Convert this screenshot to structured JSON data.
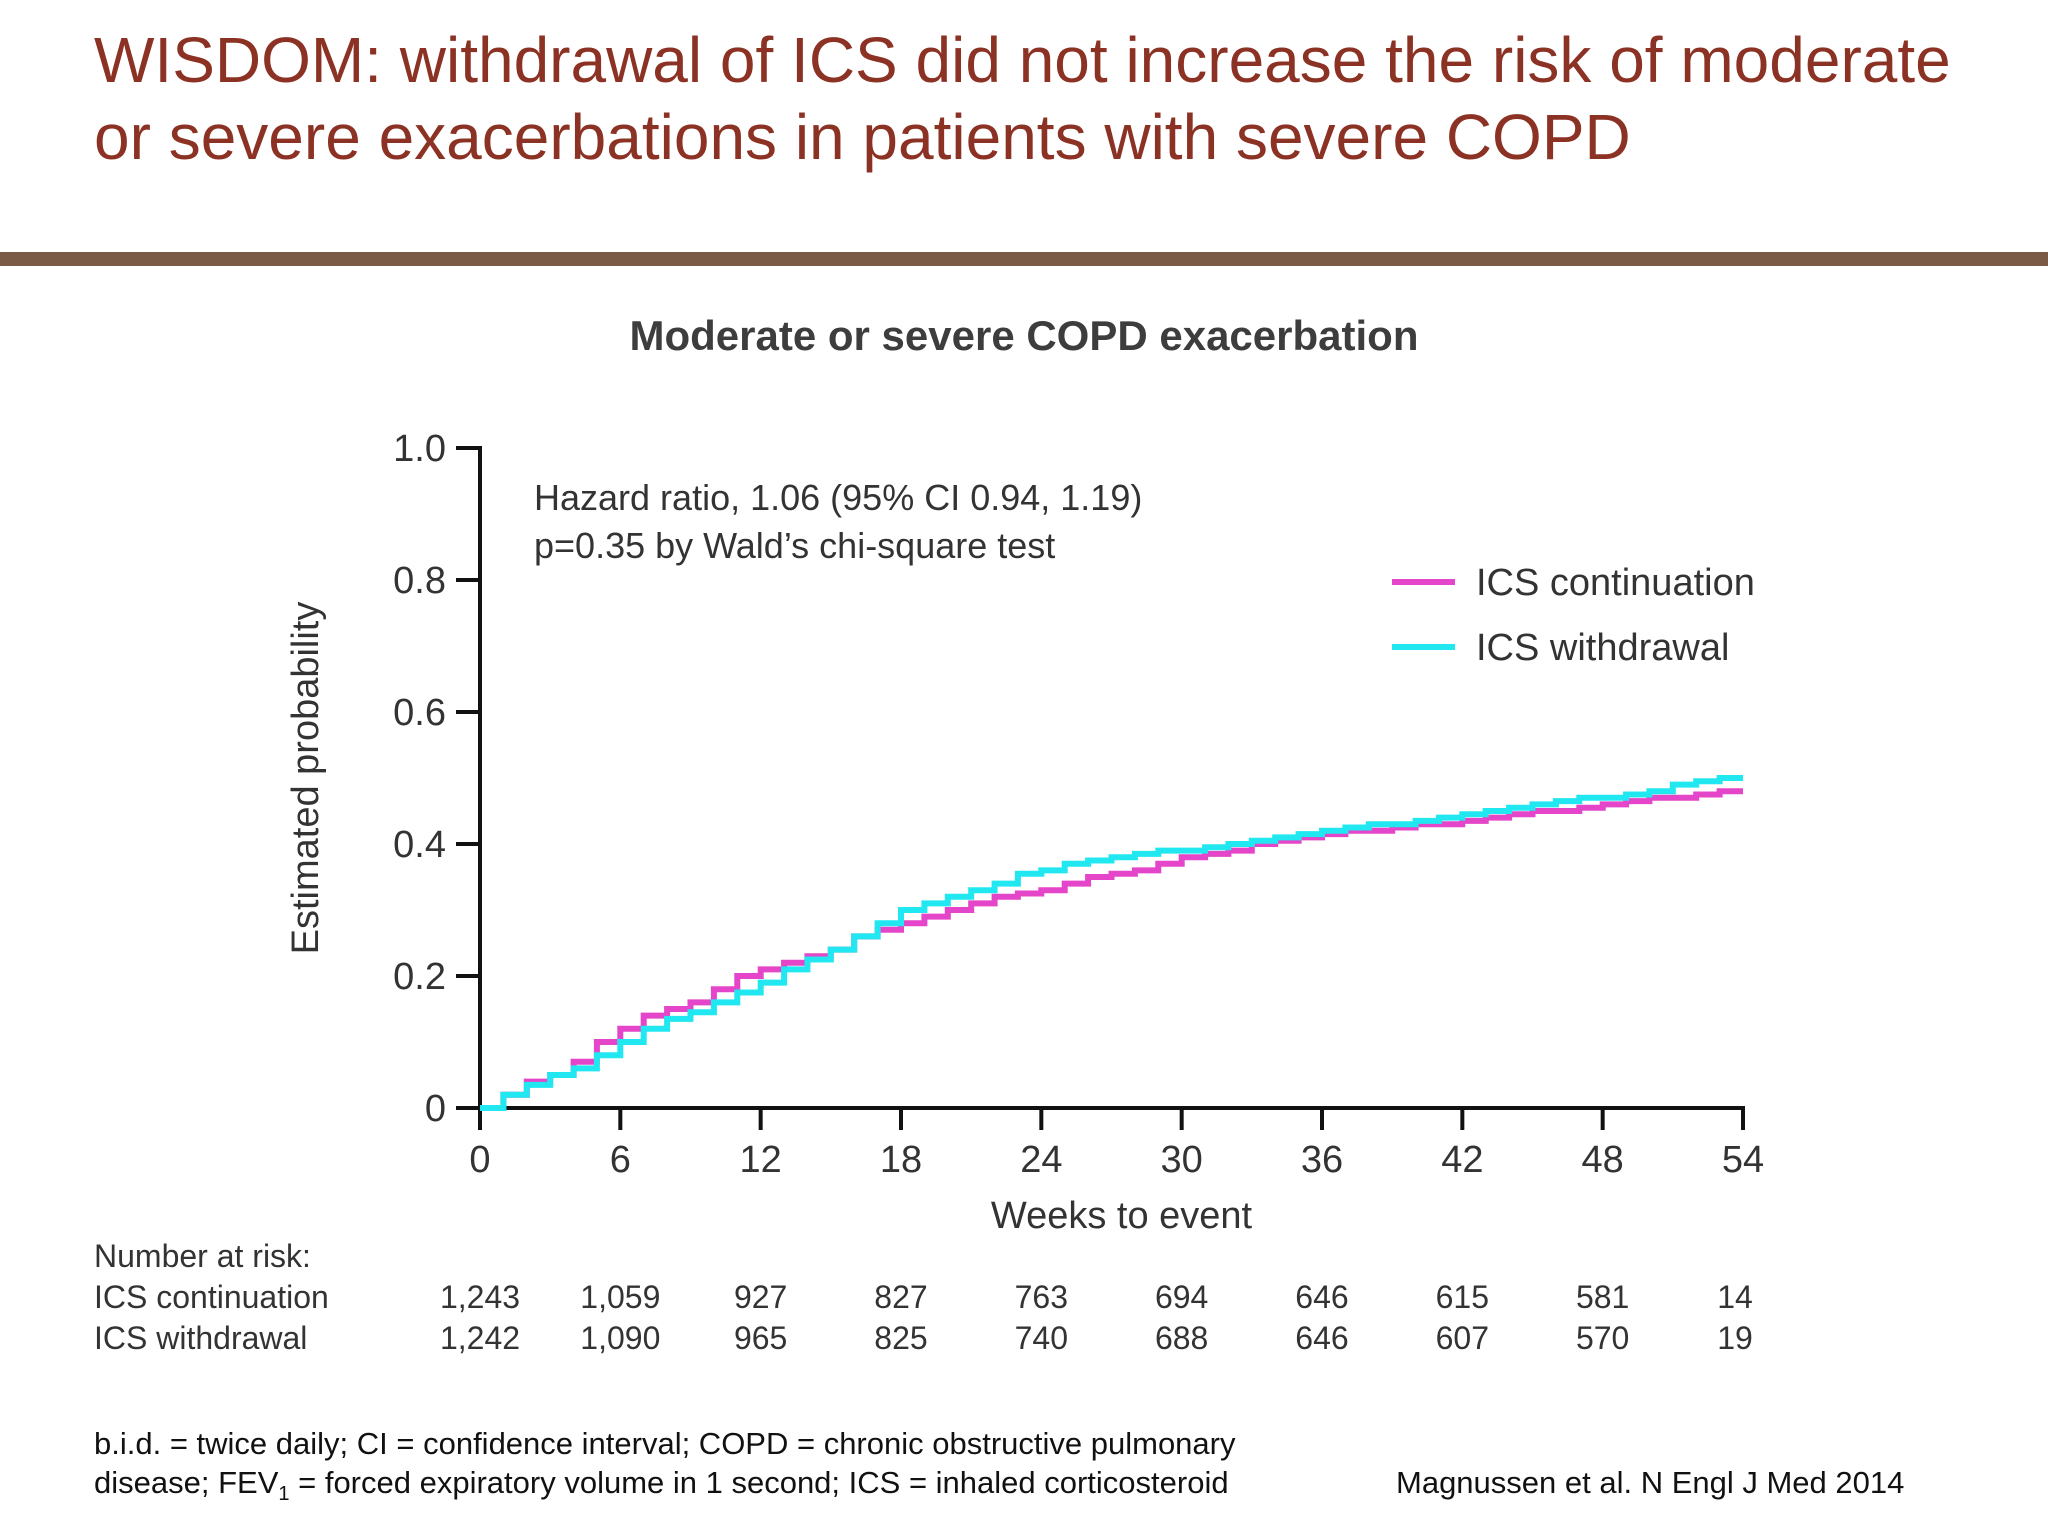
{
  "slide": {
    "title": "WISDOM: withdrawal of ICS did not increase the risk of moderate or severe exacerbations in patients with severe COPD"
  },
  "chart_data": {
    "type": "line",
    "title": "Moderate or severe COPD exacerbation",
    "xlabel": "Weeks to event",
    "ylabel": "Estimated probability",
    "xlim": [
      0,
      54
    ],
    "ylim": [
      0,
      1.0
    ],
    "xticks": [
      "0",
      "6",
      "12",
      "18",
      "24",
      "30",
      "36",
      "42",
      "48",
      "54"
    ],
    "yticks": [
      "0",
      "0.2",
      "0.4",
      "0.6",
      "0.8",
      "1.0"
    ],
    "grid": false,
    "legend": "top-right",
    "annotation": {
      "line1": "Hazard ratio, 1.06 (95% CI 0.94, 1.19)",
      "line2": "p=0.35 by Wald’s chi-square test"
    },
    "series": [
      {
        "name": "ICS continuation",
        "color": "#e545c8",
        "x": [
          0,
          1,
          2,
          3,
          4,
          5,
          6,
          7,
          8,
          9,
          10,
          11,
          12,
          13,
          14,
          15,
          16,
          17,
          18,
          19,
          20,
          21,
          22,
          23,
          24,
          25,
          26,
          27,
          28,
          29,
          30,
          31,
          32,
          33,
          34,
          35,
          36,
          37,
          38,
          39,
          40,
          41,
          42,
          43,
          44,
          45,
          46,
          47,
          48,
          49,
          50,
          51,
          52,
          53,
          54
        ],
        "y": [
          0,
          0.02,
          0.04,
          0.05,
          0.07,
          0.1,
          0.12,
          0.14,
          0.15,
          0.16,
          0.18,
          0.2,
          0.21,
          0.22,
          0.23,
          0.24,
          0.26,
          0.27,
          0.28,
          0.29,
          0.3,
          0.31,
          0.32,
          0.325,
          0.33,
          0.34,
          0.35,
          0.355,
          0.36,
          0.37,
          0.38,
          0.385,
          0.39,
          0.4,
          0.405,
          0.41,
          0.415,
          0.42,
          0.42,
          0.425,
          0.43,
          0.43,
          0.435,
          0.44,
          0.445,
          0.45,
          0.45,
          0.455,
          0.46,
          0.465,
          0.47,
          0.47,
          0.475,
          0.48,
          0.48
        ]
      },
      {
        "name": "ICS withdrawal",
        "color": "#21e8f0",
        "x": [
          0,
          1,
          2,
          3,
          4,
          5,
          6,
          7,
          8,
          9,
          10,
          11,
          12,
          13,
          14,
          15,
          16,
          17,
          18,
          19,
          20,
          21,
          22,
          23,
          24,
          25,
          26,
          27,
          28,
          29,
          30,
          31,
          32,
          33,
          34,
          35,
          36,
          37,
          38,
          39,
          40,
          41,
          42,
          43,
          44,
          45,
          46,
          47,
          48,
          49,
          50,
          51,
          52,
          53,
          54
        ],
        "y": [
          0,
          0.02,
          0.035,
          0.05,
          0.06,
          0.08,
          0.1,
          0.12,
          0.135,
          0.145,
          0.16,
          0.175,
          0.19,
          0.21,
          0.225,
          0.24,
          0.26,
          0.28,
          0.3,
          0.31,
          0.32,
          0.33,
          0.34,
          0.355,
          0.36,
          0.37,
          0.375,
          0.38,
          0.385,
          0.39,
          0.39,
          0.395,
          0.4,
          0.405,
          0.41,
          0.415,
          0.42,
          0.425,
          0.43,
          0.43,
          0.435,
          0.44,
          0.445,
          0.45,
          0.455,
          0.46,
          0.465,
          0.47,
          0.47,
          0.475,
          0.48,
          0.49,
          0.495,
          0.5,
          0.5
        ]
      }
    ]
  },
  "risk_table": {
    "header": "Number at risk:",
    "rows": [
      {
        "label": "ICS continuation",
        "values": [
          "1,243",
          "1,059",
          "927",
          "827",
          "763",
          "694",
          "646",
          "615",
          "581",
          "14"
        ]
      },
      {
        "label": "ICS withdrawal",
        "values": [
          "1,242",
          "1,090",
          "965",
          "825",
          "740",
          "688",
          "646",
          "607",
          "570",
          "19"
        ]
      }
    ]
  },
  "footnote": {
    "line1": "b.i.d. = twice daily; CI = confidence interval; COPD = chronic obstructive pulmonary",
    "line2_pre": "disease; FEV",
    "line2_sub": "1",
    "line2_post": " = forced expiratory volume in 1 second; ICS = inhaled corticosteroid"
  },
  "citation": "Magnussen et al. N Engl J Med 2014"
}
